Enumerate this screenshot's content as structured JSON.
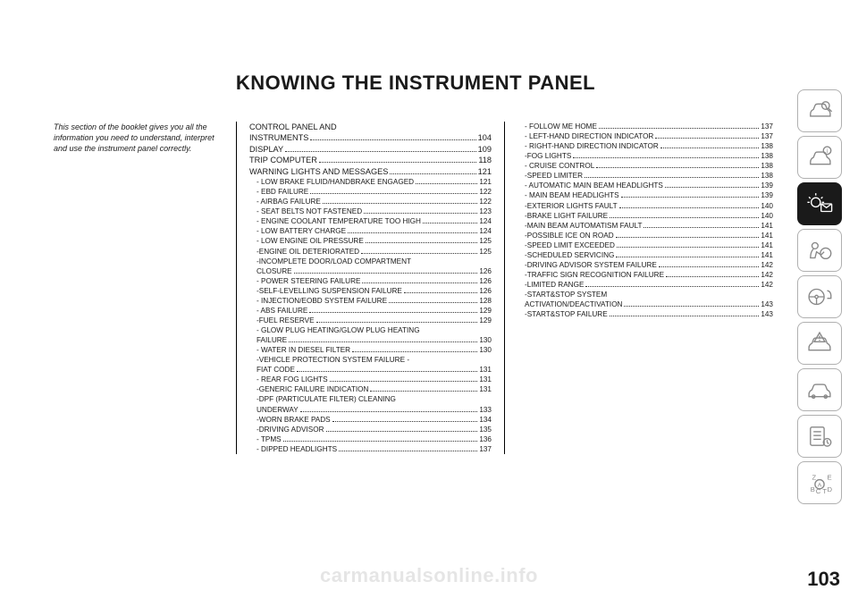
{
  "title": "KNOWING THE INSTRUMENT PANEL",
  "intro": "This section of the booklet gives you all the information you need to understand, interpret and use the instrument panel correctly.",
  "page_number": "103",
  "watermark": "carmanualsonline.info",
  "col2_major": [
    {
      "label": "CONTROL PANEL AND INSTRUMENTS",
      "page": "104"
    },
    {
      "label": "DISPLAY ",
      "page": "109"
    },
    {
      "label": "TRIP COMPUTER ",
      "page": "118"
    },
    {
      "label": "WARNING LIGHTS AND MESSAGES ",
      "page": "121"
    }
  ],
  "col2_sub": [
    {
      "label": "- LOW BRAKE FLUID/HANDBRAKE ENGAGED ",
      "page": "121"
    },
    {
      "label": "- EBD FAILURE ",
      "page": "122"
    },
    {
      "label": "- AIRBAG FAILURE ",
      "page": "122"
    },
    {
      "label": "- SEAT BELTS NOT FASTENED ",
      "page": "123"
    },
    {
      "label": "- ENGINE COOLANT TEMPERATURE TOO HIGH ",
      "page": "124"
    },
    {
      "label": "- LOW BATTERY CHARGE ",
      "page": "124"
    },
    {
      "label": "- LOW ENGINE OIL PRESSURE ",
      "page": "125"
    },
    {
      "label": "-ENGINE OIL DETERIORATED ",
      "page": "125"
    },
    {
      "label": "-INCOMPLETE DOOR/LOAD COMPARTMENT CLOSURE ",
      "page": "126"
    },
    {
      "label": "- POWER STEERING FAILURE ",
      "page": "126"
    },
    {
      "label": "-SELF-LEVELLING SUSPENSION FAILURE ",
      "page": "126"
    },
    {
      "label": "- INJECTION/EOBD SYSTEM FAILURE ",
      "page": "128"
    },
    {
      "label": "- ABS FAILURE ",
      "page": "129"
    },
    {
      "label": "-FUEL RESERVE ",
      "page": "129"
    },
    {
      "label": "- GLOW PLUG HEATING/GLOW PLUG HEATING FAILURE ",
      "page": "130"
    },
    {
      "label": "- WATER IN DIESEL FILTER ",
      "page": "130"
    },
    {
      "label": "-VEHICLE PROTECTION SYSTEM FAILURE - FIAT CODE ",
      "page": "131"
    },
    {
      "label": "- REAR FOG LIGHTS ",
      "page": "131"
    },
    {
      "label": "-GENERIC FAILURE INDICATION ",
      "page": "131"
    },
    {
      "label": "-DPF (PARTICULATE FILTER) CLEANING UNDERWAY ",
      "page": "133"
    },
    {
      "label": "-WORN BRAKE PADS ",
      "page": "134"
    },
    {
      "label": "-DRIVING ADVISOR ",
      "page": "135"
    },
    {
      "label": "- TPMS ",
      "page": "136"
    },
    {
      "label": "- DIPPED HEADLIGHTS ",
      "page": "137"
    }
  ],
  "col3_sub": [
    {
      "label": "- FOLLOW ME HOME ",
      "page": "137"
    },
    {
      "label": "- LEFT-HAND DIRECTION INDICATOR ",
      "page": "137"
    },
    {
      "label": "- RIGHT-HAND DIRECTION INDICATOR ",
      "page": "138"
    },
    {
      "label": "-FOG LIGHTS ",
      "page": "138"
    },
    {
      "label": "- CRUISE CONTROL ",
      "page": "138"
    },
    {
      "label": "-SPEED LIMITER ",
      "page": "138"
    },
    {
      "label": "- AUTOMATIC MAIN BEAM HEADLIGHTS ",
      "page": "139"
    },
    {
      "label": "- MAIN BEAM HEADLIGHTS ",
      "page": "139"
    },
    {
      "label": "-EXTERIOR LIGHTS FAULT ",
      "page": "140"
    },
    {
      "label": "-BRAKE LIGHT FAILURE ",
      "page": "140"
    },
    {
      "label": "-MAIN BEAM AUTOMATISM FAULT ",
      "page": "141"
    },
    {
      "label": "-POSSIBLE ICE ON ROAD ",
      "page": "141"
    },
    {
      "label": "-SPEED LIMIT EXCEEDED ",
      "page": "141"
    },
    {
      "label": "-SCHEDULED SERVICING ",
      "page": "141"
    },
    {
      "label": "-DRIVING ADVISOR SYSTEM FAILURE ",
      "page": "142"
    },
    {
      "label": "-TRAFFIC SIGN RECOGNITION FAILURE ",
      "page": "142"
    },
    {
      "label": "-LIMITED RANGE ",
      "page": "142"
    },
    {
      "label": "-START&STOP SYSTEM ACTIVATION/DEACTIVATION ",
      "page": "143"
    },
    {
      "label": "-START&STOP FAILURE ",
      "page": "143"
    }
  ],
  "tabs": [
    {
      "name": "car-search-icon",
      "active": false
    },
    {
      "name": "car-info-icon",
      "active": false
    },
    {
      "name": "warning-light-icon",
      "active": true
    },
    {
      "name": "airbag-icon",
      "active": false
    },
    {
      "name": "steering-icon",
      "active": false
    },
    {
      "name": "car-warning-icon",
      "active": false
    },
    {
      "name": "car-side-icon",
      "active": false
    },
    {
      "name": "checklist-icon",
      "active": false
    },
    {
      "name": "index-icon",
      "active": false
    }
  ]
}
